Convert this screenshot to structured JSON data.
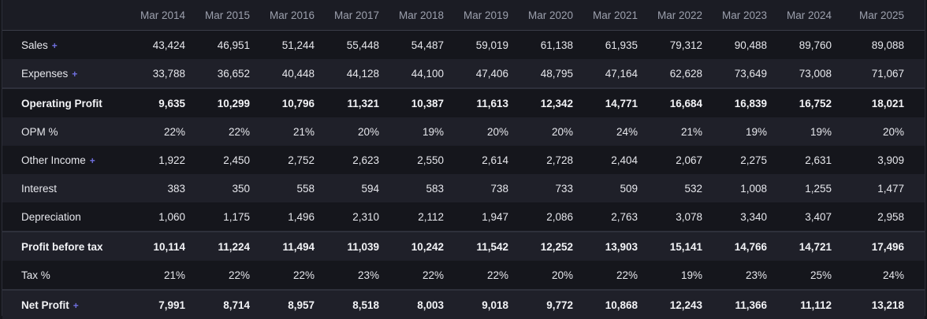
{
  "columns": [
    "Mar 2014",
    "Mar 2015",
    "Mar 2016",
    "Mar 2017",
    "Mar 2018",
    "Mar 2019",
    "Mar 2020",
    "Mar 2021",
    "Mar 2022",
    "Mar 2023",
    "Mar 2024",
    "Mar 2025"
  ],
  "rows": [
    {
      "label": "Sales",
      "expandable": true,
      "bold": false,
      "values": [
        "43,424",
        "46,951",
        "51,244",
        "55,448",
        "54,487",
        "59,019",
        "61,138",
        "61,935",
        "79,312",
        "90,488",
        "89,760",
        "89,088"
      ]
    },
    {
      "label": "Expenses",
      "expandable": true,
      "bold": false,
      "values": [
        "33,788",
        "36,652",
        "40,448",
        "44,128",
        "44,100",
        "47,406",
        "48,795",
        "47,164",
        "62,628",
        "73,649",
        "73,008",
        "71,067"
      ]
    },
    {
      "label": "Operating Profit",
      "expandable": false,
      "bold": true,
      "values": [
        "9,635",
        "10,299",
        "10,796",
        "11,321",
        "10,387",
        "11,613",
        "12,342",
        "14,771",
        "16,684",
        "16,839",
        "16,752",
        "18,021"
      ]
    },
    {
      "label": "OPM %",
      "expandable": false,
      "bold": false,
      "values": [
        "22%",
        "22%",
        "21%",
        "20%",
        "19%",
        "20%",
        "20%",
        "24%",
        "21%",
        "19%",
        "19%",
        "20%"
      ]
    },
    {
      "label": "Other Income",
      "expandable": true,
      "bold": false,
      "values": [
        "1,922",
        "2,450",
        "2,752",
        "2,623",
        "2,550",
        "2,614",
        "2,728",
        "2,404",
        "2,067",
        "2,275",
        "2,631",
        "3,909"
      ]
    },
    {
      "label": "Interest",
      "expandable": false,
      "bold": false,
      "values": [
        "383",
        "350",
        "558",
        "594",
        "583",
        "738",
        "733",
        "509",
        "532",
        "1,008",
        "1,255",
        "1,477"
      ]
    },
    {
      "label": "Depreciation",
      "expandable": false,
      "bold": false,
      "values": [
        "1,060",
        "1,175",
        "1,496",
        "2,310",
        "2,112",
        "1,947",
        "2,086",
        "2,763",
        "3,078",
        "3,340",
        "3,407",
        "2,958"
      ]
    },
    {
      "label": "Profit before tax",
      "expandable": false,
      "bold": true,
      "values": [
        "10,114",
        "11,224",
        "11,494",
        "11,039",
        "10,242",
        "11,542",
        "12,252",
        "13,903",
        "15,141",
        "14,766",
        "14,721",
        "17,496"
      ]
    },
    {
      "label": "Tax %",
      "expandable": false,
      "bold": false,
      "values": [
        "21%",
        "22%",
        "22%",
        "23%",
        "22%",
        "22%",
        "20%",
        "22%",
        "19%",
        "23%",
        "25%",
        "24%"
      ]
    },
    {
      "label": "Net Profit",
      "expandable": true,
      "bold": true,
      "values": [
        "7,991",
        "8,714",
        "8,957",
        "8,518",
        "8,003",
        "9,018",
        "9,772",
        "10,868",
        "12,243",
        "11,366",
        "11,112",
        "13,218"
      ]
    }
  ],
  "expand_symbol": "+"
}
